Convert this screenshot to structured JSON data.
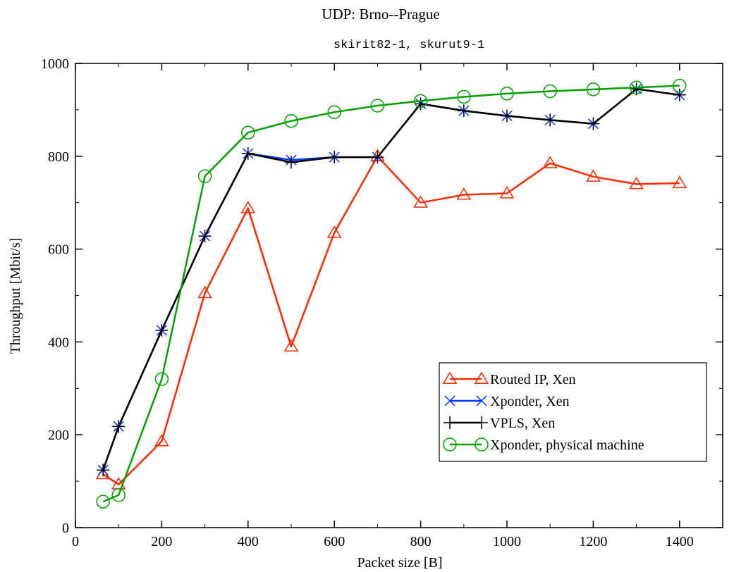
{
  "chart_data": {
    "type": "line",
    "title": "UDP: Brno--Prague",
    "subtitle": "skirit82-1, skurut9-1",
    "xlabel": "Packet size [B]",
    "ylabel": "Throughput [Mbit/s]",
    "xlim": [
      0,
      1500
    ],
    "ylim": [
      0,
      1000
    ],
    "xticks": [
      0,
      200,
      400,
      600,
      800,
      1000,
      1200,
      1400
    ],
    "yticks": [
      0,
      200,
      400,
      600,
      800,
      1000
    ],
    "grid": false,
    "legend_position": "lower-right",
    "series": [
      {
        "name": "Routed IP, Xen",
        "color": "#ff2a00",
        "marker": "triangle",
        "x": [
          64,
          100,
          200,
          300,
          400,
          500,
          600,
          700,
          800,
          900,
          1000,
          1100,
          1200,
          1300,
          1400
        ],
        "y": [
          115,
          93,
          186,
          505,
          688,
          390,
          635,
          800,
          700,
          717,
          720,
          785,
          756,
          740,
          742
        ]
      },
      {
        "name": "Xponder, Xen",
        "color": "#0033ff",
        "marker": "x",
        "x": [
          64,
          100,
          200,
          300,
          400,
          500,
          600,
          700,
          800,
          900,
          1000,
          1100,
          1200,
          1300,
          1400
        ],
        "y": [
          124,
          218,
          425,
          628,
          806,
          792,
          798,
          798,
          913,
          898,
          887,
          878,
          870,
          945,
          932
        ]
      },
      {
        "name": "VPLS, Xen",
        "color": "#000000",
        "marker": "plus",
        "x": [
          64,
          100,
          200,
          300,
          400,
          500,
          600,
          700,
          800,
          900,
          1000,
          1100,
          1200,
          1300,
          1400
        ],
        "y": [
          124,
          218,
          425,
          628,
          806,
          787,
          798,
          798,
          913,
          898,
          887,
          878,
          870,
          945,
          932
        ]
      },
      {
        "name": "Xponder, physical machine",
        "color": "#00a000",
        "marker": "circle",
        "x": [
          64,
          100,
          200,
          300,
          400,
          500,
          600,
          700,
          800,
          900,
          1000,
          1100,
          1200,
          1300,
          1400
        ],
        "y": [
          56,
          70,
          320,
          757,
          851,
          876,
          895,
          909,
          919,
          928,
          935,
          940,
          944,
          948,
          952
        ]
      }
    ]
  }
}
